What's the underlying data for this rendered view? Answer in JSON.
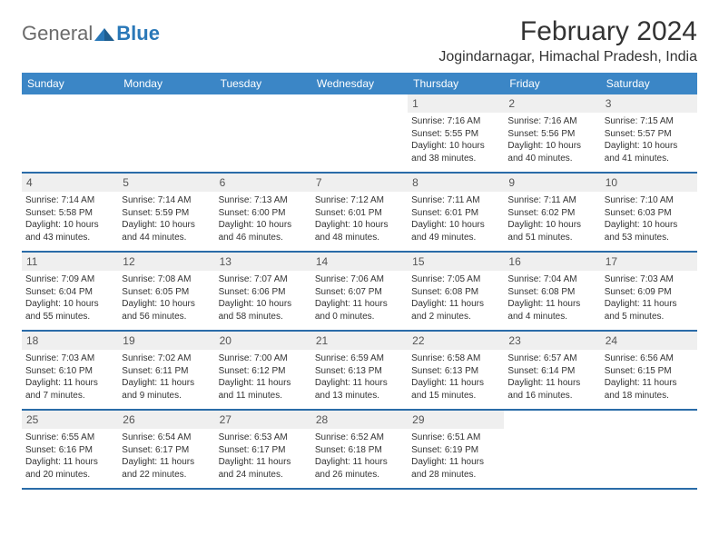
{
  "logo": {
    "general": "General",
    "blue": "Blue"
  },
  "header": {
    "title": "February 2024",
    "location": "Jogindarnagar, Himachal Pradesh, India"
  },
  "colors": {
    "header_bg": "#3b86c6",
    "header_text": "#ffffff",
    "border": "#2a6ca8",
    "daynum_bg": "#efefef",
    "text": "#333333",
    "logo_gray": "#6b6b6b",
    "logo_blue": "#2a78b8"
  },
  "weekdays": [
    "Sunday",
    "Monday",
    "Tuesday",
    "Wednesday",
    "Thursday",
    "Friday",
    "Saturday"
  ],
  "weeks": [
    [
      null,
      null,
      null,
      null,
      {
        "n": "1",
        "sr": "7:16 AM",
        "ss": "5:55 PM",
        "dl": "10 hours and 38 minutes."
      },
      {
        "n": "2",
        "sr": "7:16 AM",
        "ss": "5:56 PM",
        "dl": "10 hours and 40 minutes."
      },
      {
        "n": "3",
        "sr": "7:15 AM",
        "ss": "5:57 PM",
        "dl": "10 hours and 41 minutes."
      }
    ],
    [
      {
        "n": "4",
        "sr": "7:14 AM",
        "ss": "5:58 PM",
        "dl": "10 hours and 43 minutes."
      },
      {
        "n": "5",
        "sr": "7:14 AM",
        "ss": "5:59 PM",
        "dl": "10 hours and 44 minutes."
      },
      {
        "n": "6",
        "sr": "7:13 AM",
        "ss": "6:00 PM",
        "dl": "10 hours and 46 minutes."
      },
      {
        "n": "7",
        "sr": "7:12 AM",
        "ss": "6:01 PM",
        "dl": "10 hours and 48 minutes."
      },
      {
        "n": "8",
        "sr": "7:11 AM",
        "ss": "6:01 PM",
        "dl": "10 hours and 49 minutes."
      },
      {
        "n": "9",
        "sr": "7:11 AM",
        "ss": "6:02 PM",
        "dl": "10 hours and 51 minutes."
      },
      {
        "n": "10",
        "sr": "7:10 AM",
        "ss": "6:03 PM",
        "dl": "10 hours and 53 minutes."
      }
    ],
    [
      {
        "n": "11",
        "sr": "7:09 AM",
        "ss": "6:04 PM",
        "dl": "10 hours and 55 minutes."
      },
      {
        "n": "12",
        "sr": "7:08 AM",
        "ss": "6:05 PM",
        "dl": "10 hours and 56 minutes."
      },
      {
        "n": "13",
        "sr": "7:07 AM",
        "ss": "6:06 PM",
        "dl": "10 hours and 58 minutes."
      },
      {
        "n": "14",
        "sr": "7:06 AM",
        "ss": "6:07 PM",
        "dl": "11 hours and 0 minutes."
      },
      {
        "n": "15",
        "sr": "7:05 AM",
        "ss": "6:08 PM",
        "dl": "11 hours and 2 minutes."
      },
      {
        "n": "16",
        "sr": "7:04 AM",
        "ss": "6:08 PM",
        "dl": "11 hours and 4 minutes."
      },
      {
        "n": "17",
        "sr": "7:03 AM",
        "ss": "6:09 PM",
        "dl": "11 hours and 5 minutes."
      }
    ],
    [
      {
        "n": "18",
        "sr": "7:03 AM",
        "ss": "6:10 PM",
        "dl": "11 hours and 7 minutes."
      },
      {
        "n": "19",
        "sr": "7:02 AM",
        "ss": "6:11 PM",
        "dl": "11 hours and 9 minutes."
      },
      {
        "n": "20",
        "sr": "7:00 AM",
        "ss": "6:12 PM",
        "dl": "11 hours and 11 minutes."
      },
      {
        "n": "21",
        "sr": "6:59 AM",
        "ss": "6:13 PM",
        "dl": "11 hours and 13 minutes."
      },
      {
        "n": "22",
        "sr": "6:58 AM",
        "ss": "6:13 PM",
        "dl": "11 hours and 15 minutes."
      },
      {
        "n": "23",
        "sr": "6:57 AM",
        "ss": "6:14 PM",
        "dl": "11 hours and 16 minutes."
      },
      {
        "n": "24",
        "sr": "6:56 AM",
        "ss": "6:15 PM",
        "dl": "11 hours and 18 minutes."
      }
    ],
    [
      {
        "n": "25",
        "sr": "6:55 AM",
        "ss": "6:16 PM",
        "dl": "11 hours and 20 minutes."
      },
      {
        "n": "26",
        "sr": "6:54 AM",
        "ss": "6:17 PM",
        "dl": "11 hours and 22 minutes."
      },
      {
        "n": "27",
        "sr": "6:53 AM",
        "ss": "6:17 PM",
        "dl": "11 hours and 24 minutes."
      },
      {
        "n": "28",
        "sr": "6:52 AM",
        "ss": "6:18 PM",
        "dl": "11 hours and 26 minutes."
      },
      {
        "n": "29",
        "sr": "6:51 AM",
        "ss": "6:19 PM",
        "dl": "11 hours and 28 minutes."
      },
      null,
      null
    ]
  ],
  "labels": {
    "sunrise": "Sunrise: ",
    "sunset": "Sunset: ",
    "daylight": "Daylight: "
  }
}
